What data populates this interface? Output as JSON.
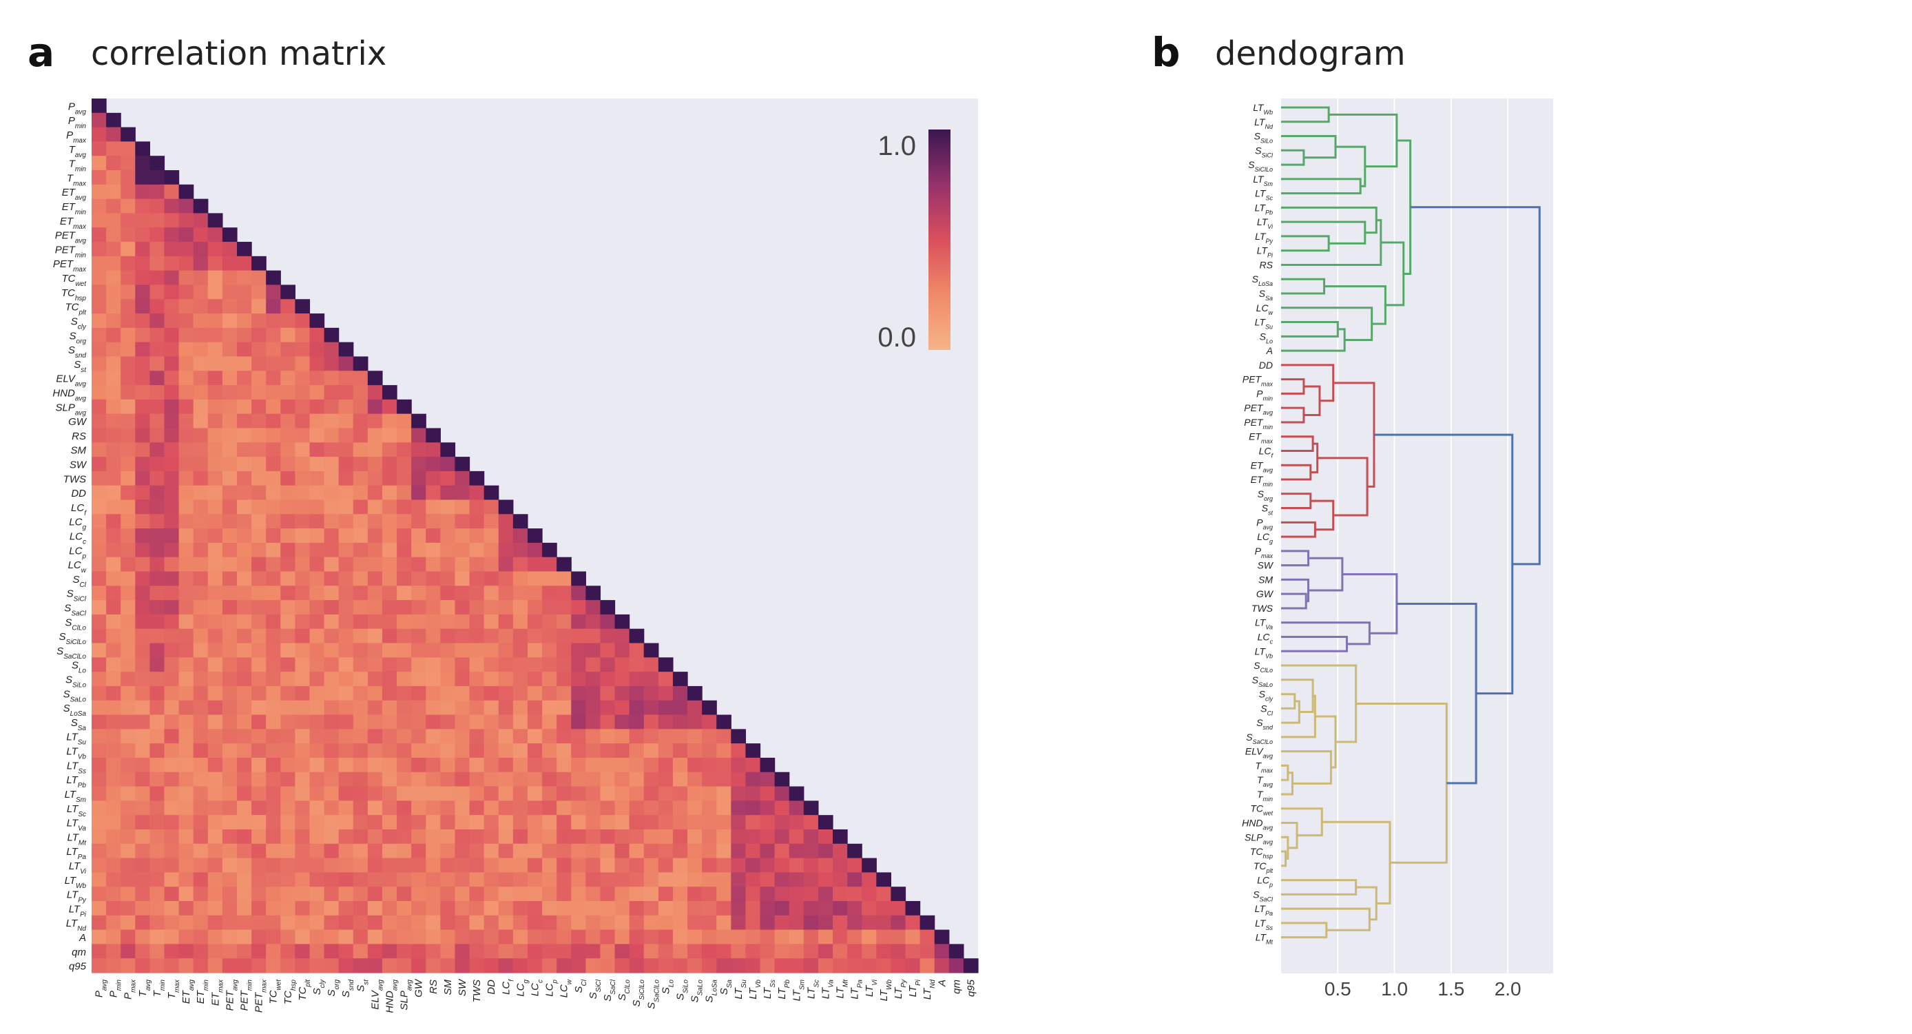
{
  "panels": {
    "a": {
      "letter": "a",
      "title": "correlation matrix"
    },
    "b": {
      "letter": "b",
      "title": "dendogram"
    }
  },
  "chart_data": [
    {
      "type": "heatmap",
      "title": "correlation matrix",
      "variables": [
        [
          "P",
          "avg"
        ],
        [
          "P",
          "min"
        ],
        [
          "P",
          "max"
        ],
        [
          "T",
          "avg"
        ],
        [
          "T",
          "min"
        ],
        [
          "T",
          "max"
        ],
        [
          "ET",
          "avg"
        ],
        [
          "ET",
          "min"
        ],
        [
          "ET",
          "max"
        ],
        [
          "PET",
          "avg"
        ],
        [
          "PET",
          "min"
        ],
        [
          "PET",
          "max"
        ],
        [
          "TC",
          "wet"
        ],
        [
          "TC",
          "hsp"
        ],
        [
          "TC",
          "plt"
        ],
        [
          "S",
          "cly"
        ],
        [
          "S",
          "org"
        ],
        [
          "S",
          "snd"
        ],
        [
          "S",
          "st"
        ],
        [
          "ELV",
          "avg"
        ],
        [
          "HND",
          "avg"
        ],
        [
          "SLP",
          "avg"
        ],
        [
          "GW",
          ""
        ],
        [
          "RS",
          ""
        ],
        [
          "SM",
          ""
        ],
        [
          "SW",
          ""
        ],
        [
          "TWS",
          ""
        ],
        [
          "DD",
          ""
        ],
        [
          "LC",
          "f"
        ],
        [
          "LC",
          "g"
        ],
        [
          "LC",
          "c"
        ],
        [
          "LC",
          "p"
        ],
        [
          "LC",
          "w"
        ],
        [
          "S",
          "Cl"
        ],
        [
          "S",
          "SiCl"
        ],
        [
          "S",
          "SaCl"
        ],
        [
          "S",
          "ClLo"
        ],
        [
          "S",
          "SiClLo"
        ],
        [
          "S",
          "SaClLo"
        ],
        [
          "S",
          "Lo"
        ],
        [
          "S",
          "SiLo"
        ],
        [
          "S",
          "SaLo"
        ],
        [
          "S",
          "LoSa"
        ],
        [
          "S",
          "Sa"
        ],
        [
          "LT",
          "Su"
        ],
        [
          "LT",
          "Vb"
        ],
        [
          "LT",
          "Ss"
        ],
        [
          "LT",
          "Pb"
        ],
        [
          "LT",
          "Sm"
        ],
        [
          "LT",
          "Sc"
        ],
        [
          "LT",
          "Va"
        ],
        [
          "LT",
          "Mt"
        ],
        [
          "LT",
          "Pa"
        ],
        [
          "LT",
          "Vi"
        ],
        [
          "LT",
          "Wb"
        ],
        [
          "LT",
          "Py"
        ],
        [
          "LT",
          "Pi"
        ],
        [
          "LT",
          "Nd"
        ],
        [
          "A",
          ""
        ],
        [
          "qm",
          ""
        ],
        [
          "q95",
          ""
        ]
      ],
      "colorbar": {
        "min": 0.0,
        "max": 1.0,
        "tick_labels": [
          "1.0",
          "0.0"
        ],
        "low_color": "#f4a878",
        "high_color": "#3d1752"
      },
      "triangle": "lower",
      "background_color": "#eaeaf2"
    },
    {
      "type": "dendrogram",
      "title": "dendogram",
      "x_ticks": [
        0.5,
        1.0,
        1.5,
        2.0
      ],
      "x_tick_labels": [
        "0.5",
        "1.0",
        "1.5",
        "2.0"
      ],
      "xlim": [
        0.0,
        2.4
      ],
      "leaves": [
        [
          "LT",
          "Wb"
        ],
        [
          "LT",
          "Nd"
        ],
        [
          "S",
          "SiLo"
        ],
        [
          "S",
          "SiCl"
        ],
        [
          "S",
          "SiClLo"
        ],
        [
          "LT",
          "Sm"
        ],
        [
          "LT",
          "Sc"
        ],
        [
          "LT",
          "Pb"
        ],
        [
          "LT",
          "Vi"
        ],
        [
          "LT",
          "Py"
        ],
        [
          "LT",
          "Pi"
        ],
        [
          "RS",
          ""
        ],
        [
          "S",
          "LoSa"
        ],
        [
          "S",
          "Sa"
        ],
        [
          "LC",
          "w"
        ],
        [
          "LT",
          "Su"
        ],
        [
          "S",
          "Lo"
        ],
        [
          "A",
          ""
        ],
        [
          "DD",
          ""
        ],
        [
          "PET",
          "max"
        ],
        [
          "P",
          "min"
        ],
        [
          "PET",
          "avg"
        ],
        [
          "PET",
          "min"
        ],
        [
          "ET",
          "max"
        ],
        [
          "LC",
          "f"
        ],
        [
          "ET",
          "avg"
        ],
        [
          "ET",
          "min"
        ],
        [
          "S",
          "org"
        ],
        [
          "S",
          "st"
        ],
        [
          "P",
          "avg"
        ],
        [
          "LC",
          "g"
        ],
        [
          "P",
          "max"
        ],
        [
          "SW",
          ""
        ],
        [
          "SM",
          ""
        ],
        [
          "GW",
          ""
        ],
        [
          "TWS",
          ""
        ],
        [
          "LT",
          "Va"
        ],
        [
          "LC",
          "c"
        ],
        [
          "LT",
          "Vb"
        ],
        [
          "S",
          "ClLo"
        ],
        [
          "S",
          "SaLo"
        ],
        [
          "S",
          "cly"
        ],
        [
          "S",
          "Cl"
        ],
        [
          "S",
          "snd"
        ],
        [
          "S",
          "SaClLo"
        ],
        [
          "ELV",
          "avg"
        ],
        [
          "T",
          "max"
        ],
        [
          "T",
          "avg"
        ],
        [
          "T",
          "min"
        ],
        [
          "TC",
          "wet"
        ],
        [
          "HND",
          "avg"
        ],
        [
          "SLP",
          "avg"
        ],
        [
          "TC",
          "hsp"
        ],
        [
          "TC",
          "plt"
        ],
        [
          "LC",
          "p"
        ],
        [
          "S",
          "SaCl"
        ],
        [
          "LT",
          "Pa"
        ],
        [
          "LT",
          "Ss"
        ],
        [
          "LT",
          "Mt"
        ]
      ],
      "cluster_colors": {
        "green": "#55a868",
        "red": "#c44e52",
        "purple": "#8172b3",
        "yellow": "#ccb974",
        "blue": "#4c72b0"
      },
      "background_color": "#eaeaf2"
    }
  ]
}
